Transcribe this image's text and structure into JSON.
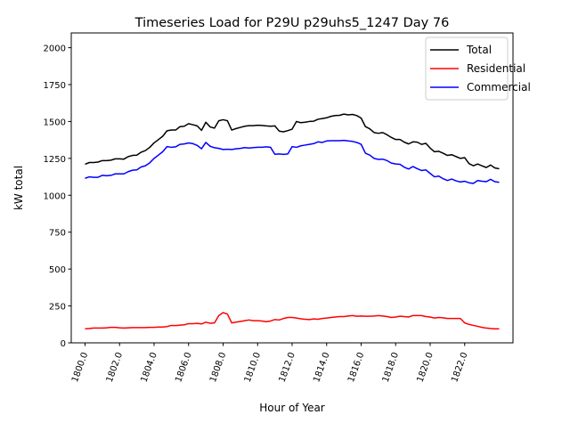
{
  "chart_data": {
    "type": "line",
    "title": "Timeseries Load for P29U p29uhs5_1247  Day 76",
    "xlabel": "Hour of Year",
    "ylabel": "kW total",
    "xlim": [
      1799.2,
      1824.8
    ],
    "ylim": [
      0,
      2100
    ],
    "x_ticks": [
      1800,
      1802,
      1804,
      1806,
      1808,
      1810,
      1812,
      1814,
      1816,
      1818,
      1820,
      1822
    ],
    "x_tick_labels": [
      "1800.0",
      "1802.0",
      "1804.0",
      "1806.0",
      "1808.0",
      "1810.0",
      "1812.0",
      "1814.0",
      "1816.0",
      "1818.0",
      "1820.0",
      "1822.0"
    ],
    "y_ticks": [
      0,
      250,
      500,
      750,
      1000,
      1250,
      1500,
      1750,
      2000
    ],
    "y_tick_labels": [
      "0",
      "250",
      "500",
      "750",
      "1000",
      "1250",
      "1500",
      "1750",
      "2000"
    ],
    "legend_position": "top-right",
    "x_start": 1800,
    "x_step": 0.25,
    "series": [
      {
        "name": "Total",
        "color": "#000000",
        "values": [
          1210,
          1222,
          1222,
          1225,
          1235,
          1235,
          1238,
          1247,
          1247,
          1245,
          1262,
          1270,
          1272,
          1292,
          1303,
          1325,
          1355,
          1377,
          1400,
          1437,
          1442,
          1442,
          1465,
          1468,
          1485,
          1478,
          1470,
          1440,
          1495,
          1463,
          1455,
          1505,
          1512,
          1505,
          1442,
          1452,
          1460,
          1468,
          1472,
          1472,
          1475,
          1473,
          1470,
          1468,
          1470,
          1435,
          1430,
          1438,
          1448,
          1500,
          1492,
          1495,
          1500,
          1502,
          1515,
          1520,
          1525,
          1535,
          1540,
          1542,
          1550,
          1545,
          1548,
          1540,
          1523,
          1465,
          1450,
          1425,
          1420,
          1425,
          1410,
          1392,
          1378,
          1378,
          1360,
          1348,
          1362,
          1360,
          1345,
          1352,
          1320,
          1295,
          1298,
          1285,
          1270,
          1275,
          1262,
          1250,
          1255,
          1215,
          1200,
          1212,
          1200,
          1188,
          1205,
          1185,
          1180
        ]
      },
      {
        "name": "Residential",
        "color": "#ff0000",
        "values": [
          95,
          97,
          100,
          100,
          100,
          102,
          105,
          105,
          102,
          100,
          102,
          103,
          103,
          103,
          103,
          105,
          105,
          107,
          107,
          110,
          118,
          117,
          120,
          122,
          130,
          130,
          132,
          128,
          140,
          133,
          135,
          185,
          205,
          195,
          135,
          140,
          145,
          150,
          155,
          150,
          150,
          148,
          143,
          148,
          158,
          155,
          165,
          172,
          172,
          168,
          163,
          160,
          158,
          162,
          160,
          165,
          168,
          172,
          175,
          178,
          178,
          182,
          185,
          180,
          182,
          180,
          180,
          182,
          185,
          182,
          178,
          172,
          175,
          180,
          178,
          175,
          185,
          185,
          185,
          178,
          175,
          168,
          172,
          170,
          165,
          165,
          165,
          165,
          135,
          125,
          118,
          112,
          105,
          100,
          97,
          95,
          95
        ]
      },
      {
        "name": "Commercial",
        "color": "#0000ff",
        "values": [
          1115,
          1125,
          1122,
          1122,
          1135,
          1132,
          1135,
          1145,
          1145,
          1145,
          1160,
          1170,
          1172,
          1192,
          1200,
          1220,
          1250,
          1272,
          1295,
          1330,
          1325,
          1328,
          1345,
          1348,
          1355,
          1350,
          1338,
          1315,
          1358,
          1332,
          1322,
          1318,
          1310,
          1312,
          1310,
          1315,
          1318,
          1323,
          1320,
          1323,
          1325,
          1325,
          1328,
          1325,
          1278,
          1280,
          1277,
          1280,
          1330,
          1325,
          1335,
          1340,
          1345,
          1350,
          1362,
          1358,
          1368,
          1370,
          1370,
          1370,
          1372,
          1368,
          1365,
          1358,
          1345,
          1285,
          1272,
          1250,
          1243,
          1245,
          1235,
          1218,
          1212,
          1210,
          1190,
          1178,
          1195,
          1180,
          1168,
          1172,
          1148,
          1125,
          1130,
          1112,
          1100,
          1110,
          1098,
          1090,
          1095,
          1085,
          1080,
          1100,
          1095,
          1092,
          1108,
          1092,
          1088
        ]
      }
    ]
  }
}
